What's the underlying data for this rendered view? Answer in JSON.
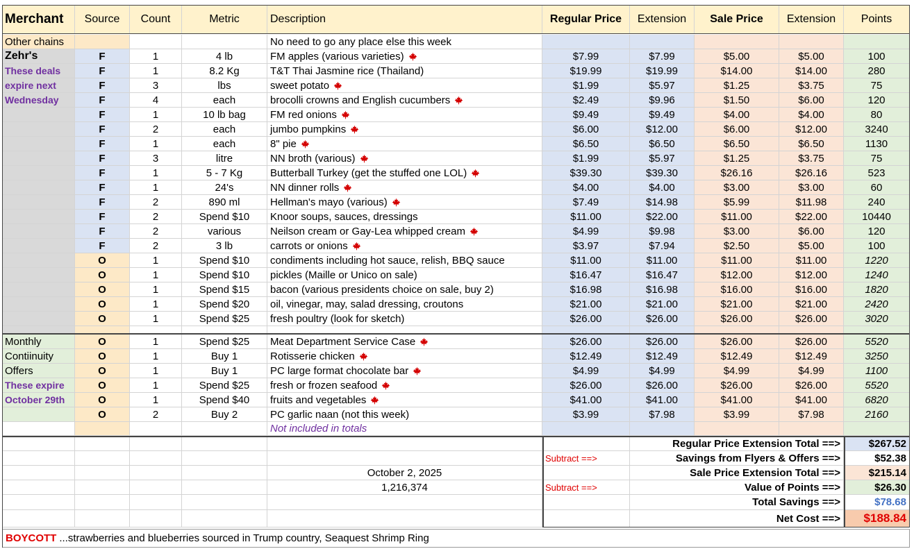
{
  "header": {
    "columns": [
      "Merchant",
      "Source",
      "Count",
      "Metric",
      "Description",
      "Regular Price",
      "Extension",
      "Sale Price",
      "Extension",
      "Points"
    ]
  },
  "flyer": [
    {
      "cells": [
        "Other chains",
        null,
        null,
        null,
        "No need to go any place else this week",
        null,
        null,
        null,
        null,
        null
      ],
      "leaf": false
    },
    {
      "cells": [
        "Zehr's",
        "F",
        "1",
        "4 lb",
        "FM apples (various varieties)",
        "$7.99",
        "$7.99",
        "$5.00",
        "$5.00",
        "100"
      ],
      "leaf": true
    },
    {
      "cells": [
        "These deals",
        "F",
        "1",
        "8.2 Kg",
        "T&T Thai Jasmine rice (Thailand)",
        "$19.99",
        "$19.99",
        "$14.00",
        "$14.00",
        "280"
      ],
      "leaf": false
    },
    {
      "cells": [
        "expire next",
        "F",
        "3",
        "lbs",
        "sweet potato",
        "$1.99",
        "$5.97",
        "$1.25",
        "$3.75",
        "75"
      ],
      "leaf": true
    },
    {
      "cells": [
        "Wednesday",
        "F",
        "4",
        "each",
        "brocolli crowns and English cucumbers",
        "$2.49",
        "$9.96",
        "$1.50",
        "$6.00",
        "120"
      ],
      "leaf": true
    },
    {
      "cells": [
        null,
        "F",
        "1",
        "10 lb bag",
        "FM red onions",
        "$9.49",
        "$9.49",
        "$4.00",
        "$4.00",
        "80"
      ],
      "leaf": true
    },
    {
      "cells": [
        null,
        "F",
        "2",
        "each",
        "jumbo pumpkins",
        "$6.00",
        "$12.00",
        "$6.00",
        "$12.00",
        "3240"
      ],
      "leaf": true
    },
    {
      "cells": [
        null,
        "F",
        "1",
        "each",
        "8\" pie",
        "$6.50",
        "$6.50",
        "$6.50",
        "$6.50",
        "1130"
      ],
      "leaf": true
    },
    {
      "cells": [
        null,
        "F",
        "3",
        "litre",
        "NN broth (various)",
        "$1.99",
        "$5.97",
        "$1.25",
        "$3.75",
        "75"
      ],
      "leaf": true
    },
    {
      "cells": [
        null,
        "F",
        "1",
        "5 - 7 Kg",
        "Butterball Turkey (get the stuffed one LOL)",
        "$39.30",
        "$39.30",
        "$26.16",
        "$26.16",
        "523"
      ],
      "leaf": true
    },
    {
      "cells": [
        null,
        "F",
        "1",
        "24's",
        "NN dinner rolls",
        "$4.00",
        "$4.00",
        "$3.00",
        "$3.00",
        "60"
      ],
      "leaf": true
    },
    {
      "cells": [
        null,
        "F",
        "2",
        "890 ml",
        "Hellman's mayo (various)",
        "$7.49",
        "$14.98",
        "$5.99",
        "$11.98",
        "240"
      ],
      "leaf": true
    },
    {
      "cells": [
        null,
        "F",
        "2",
        "Spend $10",
        "Knoor soups, sauces, dressings",
        "$11.00",
        "$22.00",
        "$11.00",
        "$22.00",
        "10440"
      ],
      "leaf": false
    },
    {
      "cells": [
        null,
        "F",
        "2",
        "various",
        "Neilson cream or Gay-Lea whipped cream",
        "$4.99",
        "$9.98",
        "$3.00",
        "$6.00",
        "120"
      ],
      "leaf": true
    },
    {
      "cells": [
        null,
        "F",
        "2",
        "3 lb",
        "carrots or onions",
        "$3.97",
        "$7.94",
        "$2.50",
        "$5.00",
        "100"
      ],
      "leaf": true
    },
    {
      "cells": [
        null,
        "O",
        "1",
        "Spend $10",
        "condiments including hot sauce, relish, BBQ sauce",
        "$11.00",
        "$11.00",
        "$11.00",
        "$11.00",
        "1220"
      ],
      "leaf": false
    },
    {
      "cells": [
        null,
        "O",
        "1",
        "Spend $10",
        "pickles (Maille or Unico on sale)",
        "$16.47",
        "$16.47",
        "$12.00",
        "$12.00",
        "1240"
      ],
      "leaf": false
    },
    {
      "cells": [
        null,
        "O",
        "1",
        "Spend $15",
        "bacon (various presidents choice on sale, buy 2)",
        "$16.98",
        "$16.98",
        "$16.00",
        "$16.00",
        "1820"
      ],
      "leaf": false
    },
    {
      "cells": [
        null,
        "O",
        "1",
        "Spend $20",
        "oil, vinegar, may, salad dressing, croutons",
        "$21.00",
        "$21.00",
        "$21.00",
        "$21.00",
        "2420"
      ],
      "leaf": false
    },
    {
      "cells": [
        null,
        "O",
        "1",
        "Spend $25",
        "fresh poultry (look for sketch)",
        "$26.00",
        "$26.00",
        "$26.00",
        "$26.00",
        "3020"
      ],
      "leaf": false
    }
  ],
  "monthly": [
    {
      "cells": [
        "Monthly",
        "O",
        "1",
        "Spend $25",
        "Meat Department Service Case",
        "$26.00",
        "$26.00",
        "$26.00",
        "$26.00",
        "5520"
      ],
      "leaf": true
    },
    {
      "cells": [
        "Contiinuity",
        "O",
        "1",
        "Buy 1",
        "Rotisserie chicken",
        "$12.49",
        "$12.49",
        "$12.49",
        "$12.49",
        "3250"
      ],
      "leaf": true
    },
    {
      "cells": [
        "Offers",
        "O",
        "1",
        "Buy 1",
        "PC large format chocolate bar",
        "$4.99",
        "$4.99",
        "$4.99",
        "$4.99",
        "1100"
      ],
      "leaf": true
    },
    {
      "cells": [
        "These expire",
        "O",
        "1",
        "Spend $25",
        "fresh or frozen seafood",
        "$26.00",
        "$26.00",
        "$26.00",
        "$26.00",
        "5520"
      ],
      "leaf": true
    },
    {
      "cells": [
        "October 29th",
        "O",
        "1",
        "Spend $40",
        "fruits and vegetables",
        "$41.00",
        "$41.00",
        "$41.00",
        "$41.00",
        "6820"
      ],
      "leaf": true
    },
    {
      "cells": [
        null,
        "O",
        "2",
        "Buy 2",
        "PC garlic naan (not this week)",
        "$3.99",
        "$7.98",
        "$3.99",
        "$7.98",
        "2160"
      ],
      "leaf": false
    }
  ],
  "monthly_note": "Not included in totals",
  "totals": [
    {
      "note": null,
      "label": "Regular Price Extension Total ==>",
      "value": "$267.52"
    },
    {
      "note": "Subtract ==>",
      "label": "Savings from Flyers & Offers ==>",
      "value": "$52.38"
    },
    {
      "note": null,
      "label": "Sale Price Extension Total  ==>",
      "value": "$215.14"
    },
    {
      "note": "Subtract ==>",
      "label": "Value of Points ==>",
      "value": "$26.30"
    },
    {
      "note": null,
      "label": "Total Savings  ==>",
      "value": "$78.68"
    },
    {
      "note": null,
      "label": "Net Cost  ==>",
      "value": "$188.84"
    }
  ],
  "date": "October 2, 2025",
  "views": "1,216,374",
  "footer": {
    "boycott": "BOYCOTT",
    "text": "...strawberries and blueberries sourced in Trump country, Seaquest Shrimp Ring"
  }
}
